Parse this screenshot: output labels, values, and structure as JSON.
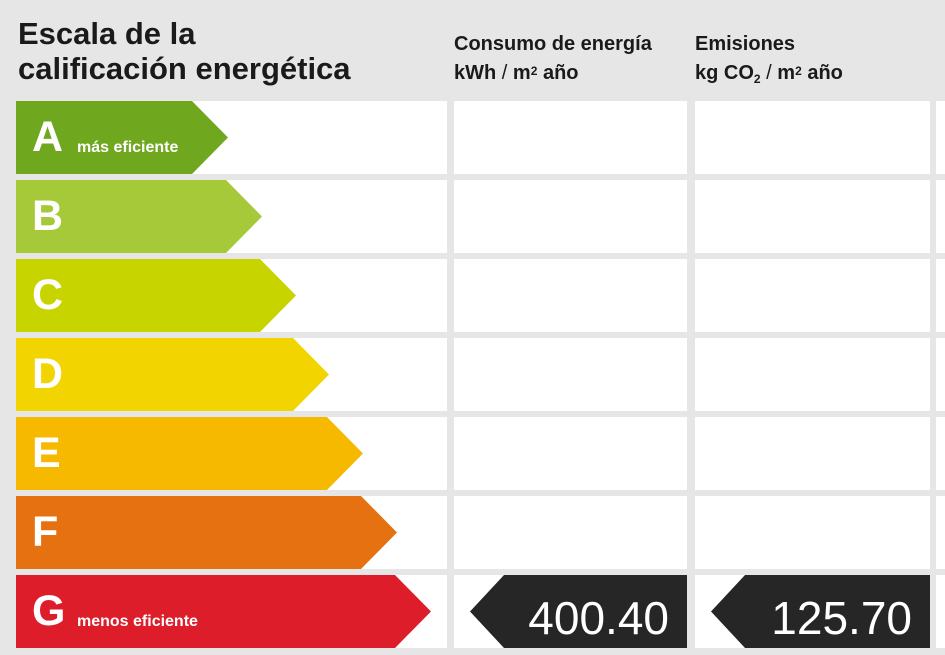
{
  "header": {
    "title_line1": "Escala de la",
    "title_line2": "calificación energética",
    "consumo": {
      "title": "Consumo de energía",
      "unit_prefix": "kWh",
      "unit_slash": "/",
      "unit_m": "m",
      "unit_sup": "2",
      "unit_suffix": "año"
    },
    "emisiones": {
      "title": "Emisiones",
      "unit_prefix": "kg CO",
      "unit_sub": "2",
      "unit_slash": "/",
      "unit_m": "m",
      "unit_sup": "2",
      "unit_suffix": "año"
    }
  },
  "scale": [
    {
      "letter": "A",
      "desc": "más eficiente",
      "color": "#6fa81e"
    },
    {
      "letter": "B",
      "desc": "",
      "color": "#a6c93a"
    },
    {
      "letter": "C",
      "desc": "",
      "color": "#c8d400"
    },
    {
      "letter": "D",
      "desc": "",
      "color": "#f2d500"
    },
    {
      "letter": "E",
      "desc": "",
      "color": "#f6b900"
    },
    {
      "letter": "F",
      "desc": "",
      "color": "#e67110"
    },
    {
      "letter": "G",
      "desc": "menos eficiente",
      "color": "#dd1e2a"
    }
  ],
  "rating": {
    "letter": "G",
    "consumo_value": "400.40",
    "emisiones_value": "125.70",
    "badge_color": "#262626"
  }
}
